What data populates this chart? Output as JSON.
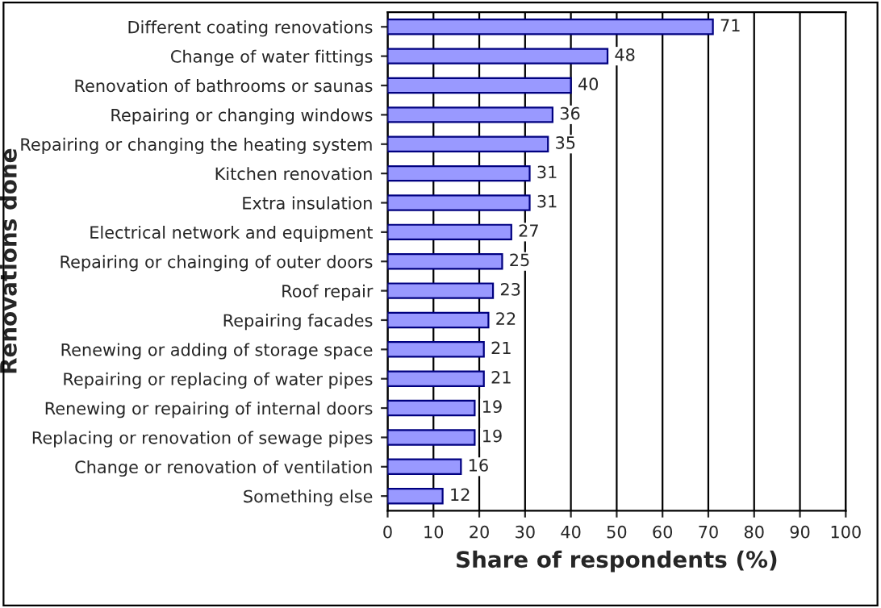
{
  "chart_data": {
    "type": "bar",
    "orientation": "horizontal",
    "xlabel": "Share of respondents (%)",
    "ylabel": "Renovations done",
    "categories": [
      "Different coating renovations",
      "Change of water fittings",
      "Renovation of bathrooms or saunas",
      "Repairing or changing windows",
      "Repairing or changing the heating system",
      "Kitchen renovation",
      "Extra insulation",
      "Electrical network and equipment",
      "Repairing or chainging of outer doors",
      "Roof repair",
      "Repairing facades",
      "Renewing or adding of storage space",
      "Repairing or replacing of water pipes",
      "Renewing or repairing of internal doors",
      "Replacing or renovation of sewage pipes",
      "Change or renovation of ventilation",
      "Something else"
    ],
    "values": [
      71,
      48,
      40,
      36,
      35,
      31,
      31,
      27,
      25,
      23,
      22,
      21,
      21,
      19,
      19,
      16,
      12
    ],
    "color": "#9999ff",
    "xlim": [
      0,
      100
    ],
    "xticks": [
      0,
      10,
      20,
      30,
      40,
      50,
      60,
      70,
      80,
      90,
      100
    ],
    "grid": "x",
    "data_labels": true
  }
}
